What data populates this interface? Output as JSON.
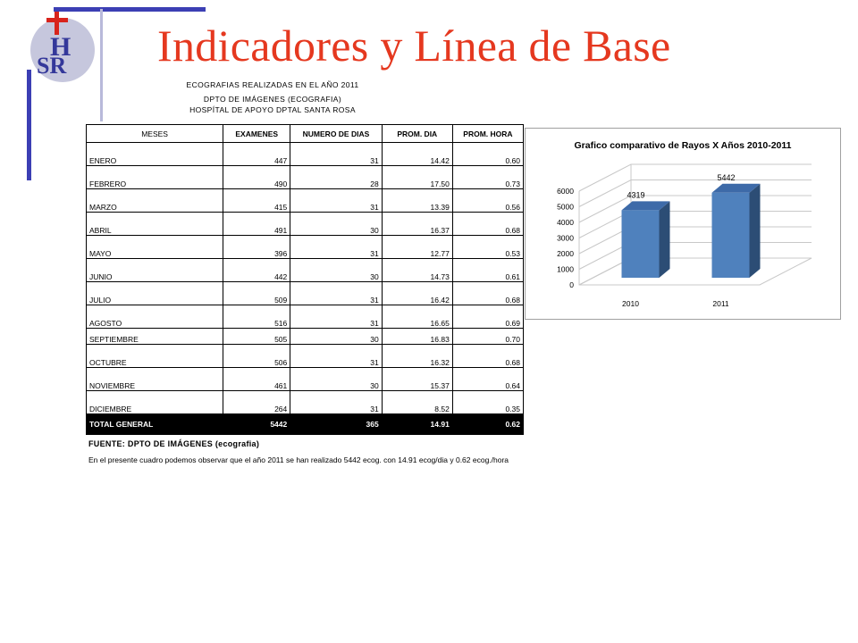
{
  "slide": {
    "title": "Indicadores y Línea de Base",
    "logo_text": "HSR",
    "colors": {
      "title": "#e5381f",
      "accent_bars": "#3c3fb4",
      "logo_circle": "#c6c7dd",
      "logo_letters": "#34389a",
      "logo_cross": "#d8231c"
    }
  },
  "table_header": {
    "line1": "ECOGRAFIAS REALIZADAS EN EL AÑO 2011",
    "line2": "DPTO DE IMÁGENES (ECOGRAFIA)",
    "line3": "HOSPÍTAL DE APOYO DPTAL SANTA ROSA"
  },
  "table": {
    "columns": [
      "MESES",
      "EXAMENES",
      "NUMERO DE DIAS",
      "PROM. DIA",
      "PROM. HORA"
    ],
    "rows": [
      [
        "ENERO",
        "447",
        "31",
        "14.42",
        "0.60"
      ],
      [
        "FEBRERO",
        "490",
        "28",
        "17.50",
        "0.73"
      ],
      [
        "MARZO",
        "415",
        "31",
        "13.39",
        "0.56"
      ],
      [
        "ABRIL",
        "491",
        "30",
        "16.37",
        "0.68"
      ],
      [
        "MAYO",
        "396",
        "31",
        "12.77",
        "0.53"
      ],
      [
        "JUNIO",
        "442",
        "30",
        "14.73",
        "0.61"
      ],
      [
        "JULIO",
        "509",
        "31",
        "16.42",
        "0.68"
      ],
      [
        "AGOSTO",
        "516",
        "31",
        "16.65",
        "0.69"
      ],
      [
        "SEPTIEMBRE",
        "505",
        "30",
        "16.83",
        "0.70"
      ],
      [
        "OCTUBRE",
        "506",
        "31",
        "16.32",
        "0.68"
      ],
      [
        "NOVIEMBRE",
        "461",
        "30",
        "15.37",
        "0.64"
      ],
      [
        "DICIEMBRE",
        "264",
        "31",
        "8.52",
        "0.35"
      ]
    ],
    "total": [
      "TOTAL GENERAL",
      "5442",
      "365",
      "14.91",
      "0.62"
    ]
  },
  "fuente": "FUENTE: DPTO DE IMÁGENES (ecografia)",
  "note": "En el presente cuadro podemos observar que el año 2011 se han realizado 5442 ecog. con 14.91 ecog/dia y 0.62 ecog./hora",
  "chart_data": {
    "type": "bar",
    "title": "Grafico comparativo de Rayos X Años 2010-2011",
    "categories": [
      "2010",
      "2011"
    ],
    "values": [
      4319,
      5442
    ],
    "data_labels": [
      "4319",
      "5442"
    ],
    "ylim": [
      0,
      6000
    ],
    "yticks": [
      "0",
      "1000",
      "2000",
      "3000",
      "4000",
      "5000",
      "6000"
    ],
    "grid": true,
    "style": "3d-column",
    "bar_color": "#4f81bd"
  }
}
